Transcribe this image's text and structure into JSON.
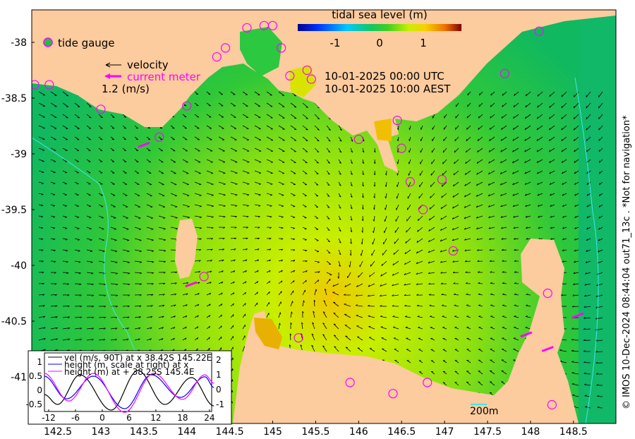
{
  "title": "tidal sea level (m)",
  "colorbar": {
    "ticks": [
      "-1",
      "0",
      "1"
    ],
    "range": [
      -1.85,
      1.85
    ],
    "colors": [
      "#00008f",
      "#0030ff",
      "#00c8ff",
      "#10c860",
      "#40d020",
      "#c8f000",
      "#f8d000",
      "#f07000",
      "#800000"
    ]
  },
  "legend": {
    "tide_gauge": "tide gauge",
    "velocity": "velocity",
    "current_meter": "current meter",
    "scale": "1.2 (m/s)"
  },
  "times": {
    "utc": "10-01-2025 00:00 UTC",
    "local": "10-01-2025 10:00 AEST"
  },
  "x_ticks": [
    {
      "v": 142.5,
      "t": "142.5"
    },
    {
      "v": 143,
      "t": "143"
    },
    {
      "v": 143.5,
      "t": "143.5"
    },
    {
      "v": 144,
      "t": "144"
    },
    {
      "v": 144.5,
      "t": "144.5"
    },
    {
      "v": 145,
      "t": "145"
    },
    {
      "v": 145.5,
      "t": "145.5"
    },
    {
      "v": 146,
      "t": "146"
    },
    {
      "v": 146.5,
      "t": "146.5"
    },
    {
      "v": 147,
      "t": "147"
    },
    {
      "v": 147.5,
      "t": "147.5"
    },
    {
      "v": 148,
      "t": "148"
    },
    {
      "v": 148.5,
      "t": "148.5"
    }
  ],
  "y_ticks": [
    {
      "v": -38,
      "t": "-38"
    },
    {
      "v": -38.5,
      "t": "-38.5"
    },
    {
      "v": -39,
      "t": "-39"
    },
    {
      "v": -39.5,
      "t": "-39.5"
    },
    {
      "v": -40,
      "t": "-40"
    },
    {
      "v": -40.5,
      "t": "-40.5"
    },
    {
      "v": -41,
      "t": "-41"
    }
  ],
  "scale_bar": "200m",
  "credit": "© IMOS 10-Dec-2024 08:44:04 out71_13c . *Not for navigation*",
  "colors": {
    "land": "#fccb9e",
    "gauge": "#ff00ff",
    "sea_green": "#1ec050"
  },
  "gauges": [
    [
      142.23,
      -38.38
    ],
    [
      142.4,
      -38.38
    ],
    [
      143.0,
      -38.6
    ],
    [
      143.68,
      -38.85
    ],
    [
      144.0,
      -38.57
    ],
    [
      144.35,
      -38.13
    ],
    [
      144.45,
      -38.05
    ],
    [
      144.7,
      -37.87
    ],
    [
      144.9,
      -37.85
    ],
    [
      145.0,
      -37.85
    ],
    [
      145.1,
      -38.05
    ],
    [
      145.2,
      -38.3
    ],
    [
      145.4,
      -38.25
    ],
    [
      145.45,
      -38.33
    ],
    [
      146.0,
      -38.87
    ],
    [
      146.45,
      -38.7
    ],
    [
      146.5,
      -38.95
    ],
    [
      146.6,
      -39.25
    ],
    [
      146.75,
      -39.5
    ],
    [
      146.97,
      -39.23
    ],
    [
      147.1,
      -39.87
    ],
    [
      147.7,
      -38.28
    ],
    [
      148.1,
      -37.9
    ],
    [
      144.2,
      -40.1
    ],
    [
      145.3,
      -40.65
    ],
    [
      145.9,
      -41.05
    ],
    [
      146.4,
      -41.15
    ],
    [
      146.8,
      -41.05
    ],
    [
      148.2,
      -40.25
    ],
    [
      148.25,
      -41.25
    ]
  ],
  "current_meters": [
    [
      143.5,
      -38.92
    ],
    [
      144.05,
      -40.17
    ],
    [
      147.95,
      -40.62
    ],
    [
      148.2,
      -40.75
    ],
    [
      148.55,
      -40.45
    ]
  ],
  "inset": {
    "legend": [
      "vel (m/s, 90T) at x 38.42S 145.22E",
      "height (m, scale at right) at x",
      "height (m) at + 38.25S 145.4E"
    ],
    "x_ticks": [
      "-12",
      "-6",
      "0",
      "6",
      "12",
      "18",
      "24"
    ],
    "y_left_ticks": [
      "1",
      "0.5",
      "0",
      "-0.5"
    ],
    "y_right_ticks": [
      "2",
      "1",
      "0",
      "-1"
    ],
    "series": [
      {
        "name": "velocity",
        "color": "#000000",
        "points": [
          [
            -13,
            -0.15
          ],
          [
            -10,
            -0.5
          ],
          [
            -5,
            0.55
          ],
          [
            2,
            -0.7
          ],
          [
            8,
            0.7
          ],
          [
            14,
            -0.5
          ],
          [
            20,
            0.45
          ],
          [
            25,
            -0.55
          ]
        ]
      },
      {
        "name": "height_x",
        "color": "#0000ff",
        "points": [
          [
            -13,
            0.5
          ],
          [
            -8,
            -0.3
          ],
          [
            -2,
            0.5
          ],
          [
            5,
            -0.65
          ],
          [
            11,
            0.55
          ],
          [
            17.5,
            -0.25
          ],
          [
            23,
            0.48
          ],
          [
            25,
            0.1
          ]
        ]
      },
      {
        "name": "height_plus",
        "color": "#ff00ff",
        "points": [
          [
            -13,
            0.6
          ],
          [
            -7.5,
            -0.38
          ],
          [
            -2,
            0.6
          ],
          [
            5,
            -0.78
          ],
          [
            11.5,
            0.6
          ],
          [
            18,
            -0.32
          ],
          [
            23,
            0.55
          ],
          [
            25,
            0.25
          ]
        ]
      }
    ]
  }
}
